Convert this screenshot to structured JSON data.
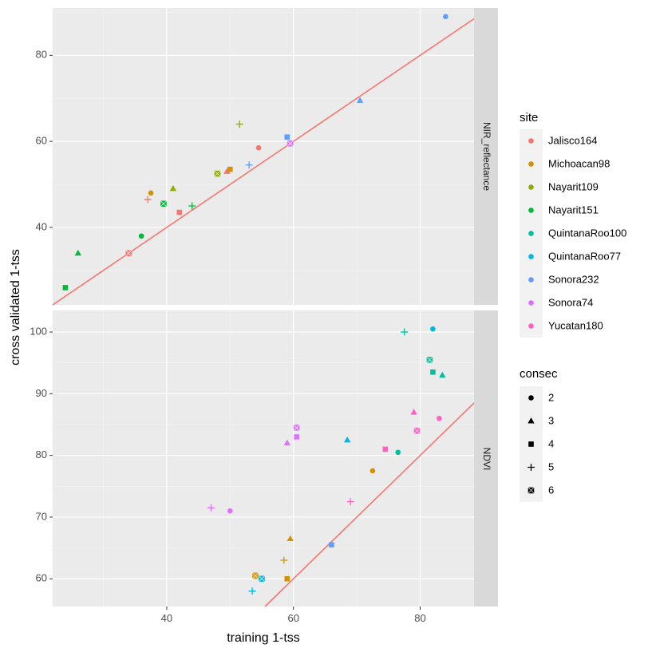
{
  "chart_data": {
    "type": "scatter",
    "xlabel": "training 1-tss",
    "ylabel": "cross validated 1-tss",
    "xlim": [
      22,
      88.5
    ],
    "x_ticks": [
      40,
      60,
      80
    ],
    "line": "y = x (1:1 reference)",
    "panels": [
      {
        "strip": "NIR_reflectance",
        "ylim": [
          22,
          91
        ],
        "y_ticks": [
          40,
          60,
          80
        ],
        "points": [
          {
            "site": "Nayarit151",
            "consec": 4,
            "x": 24,
            "y": 26
          },
          {
            "site": "Nayarit151",
            "consec": 3,
            "x": 26,
            "y": 34
          },
          {
            "site": "Jalisco164",
            "consec": 6,
            "x": 34,
            "y": 34
          },
          {
            "site": "Nayarit151",
            "consec": 2,
            "x": 36,
            "y": 38
          },
          {
            "site": "Jalisco164",
            "consec": 5,
            "x": 37,
            "y": 46.5
          },
          {
            "site": "Michoacan98",
            "consec": 2,
            "x": 37.5,
            "y": 48
          },
          {
            "site": "Nayarit151",
            "consec": 6,
            "x": 39.5,
            "y": 45.5
          },
          {
            "site": "Nayarit109",
            "consec": 3,
            "x": 41,
            "y": 49
          },
          {
            "site": "Jalisco164",
            "consec": 4,
            "x": 42,
            "y": 43.5
          },
          {
            "site": "Nayarit151",
            "consec": 5,
            "x": 44,
            "y": 45
          },
          {
            "site": "Nayarit109",
            "consec": 6,
            "x": 48,
            "y": 52.5
          },
          {
            "site": "Jalisco164",
            "consec": 3,
            "x": 49.5,
            "y": 53
          },
          {
            "site": "Michoacan98",
            "consec": 4,
            "x": 50,
            "y": 53.5
          },
          {
            "site": "Nayarit109",
            "consec": 5,
            "x": 51.5,
            "y": 64
          },
          {
            "site": "Sonora232",
            "consec": 5,
            "x": 53,
            "y": 54.5
          },
          {
            "site": "Jalisco164",
            "consec": 2,
            "x": 54.5,
            "y": 58.5
          },
          {
            "site": "Sonora232",
            "consec": 4,
            "x": 59,
            "y": 61
          },
          {
            "site": "Sonora74",
            "consec": 6,
            "x": 59.5,
            "y": 59.5
          },
          {
            "site": "Sonora232",
            "consec": 3,
            "x": 70.5,
            "y": 69.5
          },
          {
            "site": "Sonora232",
            "consec": 2,
            "x": 84,
            "y": 89
          }
        ]
      },
      {
        "strip": "NDVI",
        "ylim": [
          55.5,
          103.5
        ],
        "y_ticks": [
          60,
          70,
          80,
          90,
          100
        ],
        "points": [
          {
            "site": "Sonora74",
            "consec": 5,
            "x": 47,
            "y": 71.5
          },
          {
            "site": "Sonora74",
            "consec": 2,
            "x": 50,
            "y": 71
          },
          {
            "site": "QuintanaRoo77",
            "consec": 5,
            "x": 53.5,
            "y": 58
          },
          {
            "site": "Michoacan98",
            "consec": 6,
            "x": 54,
            "y": 60.5
          },
          {
            "site": "QuintanaRoo77",
            "consec": 6,
            "x": 55,
            "y": 60
          },
          {
            "site": "Michoacan98",
            "consec": 5,
            "x": 58.5,
            "y": 63
          },
          {
            "site": "Michoacan98",
            "consec": 4,
            "x": 59,
            "y": 60
          },
          {
            "site": "Sonora74",
            "consec": 3,
            "x": 59,
            "y": 82
          },
          {
            "site": "Michoacan98",
            "consec": 3,
            "x": 59.5,
            "y": 66.5
          },
          {
            "site": "Sonora74",
            "consec": 6,
            "x": 60.5,
            "y": 84.5
          },
          {
            "site": "Sonora74",
            "consec": 4,
            "x": 60.5,
            "y": 83
          },
          {
            "site": "Sonora232",
            "consec": 4,
            "x": 66,
            "y": 65.5
          },
          {
            "site": "QuintanaRoo77",
            "consec": 3,
            "x": 68.5,
            "y": 82.5
          },
          {
            "site": "Yucatan180",
            "consec": 5,
            "x": 69,
            "y": 72.5
          },
          {
            "site": "Michoacan98",
            "consec": 2,
            "x": 72.5,
            "y": 77.5
          },
          {
            "site": "Yucatan180",
            "consec": 4,
            "x": 74.5,
            "y": 81
          },
          {
            "site": "QuintanaRoo100",
            "consec": 2,
            "x": 76.5,
            "y": 80.5
          },
          {
            "site": "QuintanaRoo100",
            "consec": 5,
            "x": 77.5,
            "y": 100
          },
          {
            "site": "Yucatan180",
            "consec": 3,
            "x": 79,
            "y": 87
          },
          {
            "site": "Yucatan180",
            "consec": 6,
            "x": 79.5,
            "y": 84
          },
          {
            "site": "QuintanaRoo77",
            "consec": 2,
            "x": 82,
            "y": 100.5
          },
          {
            "site": "QuintanaRoo100",
            "consec": 6,
            "x": 81.5,
            "y": 95.5
          },
          {
            "site": "QuintanaRoo100",
            "consec": 4,
            "x": 82,
            "y": 93.5
          },
          {
            "site": "Yucatan180",
            "consec": 2,
            "x": 83,
            "y": 86
          },
          {
            "site": "QuintanaRoo100",
            "consec": 3,
            "x": 83.5,
            "y": 93
          }
        ]
      }
    ],
    "legends": {
      "site": {
        "title": "site",
        "entries": [
          {
            "label": "Jalisco164",
            "color": "#F8766D"
          },
          {
            "label": "Michoacan98",
            "color": "#D39200"
          },
          {
            "label": "Nayarit109",
            "color": "#93AA00"
          },
          {
            "label": "Nayarit151",
            "color": "#00BA38"
          },
          {
            "label": "QuintanaRoo100",
            "color": "#00C19F"
          },
          {
            "label": "QuintanaRoo77",
            "color": "#00B9E3"
          },
          {
            "label": "Sonora232",
            "color": "#619CFF"
          },
          {
            "label": "Sonora74",
            "color": "#DB72FB"
          },
          {
            "label": "Yucatan180",
            "color": "#FF61C3"
          }
        ]
      },
      "consec": {
        "title": "consec",
        "entries": [
          {
            "label": "2",
            "shape": "circle"
          },
          {
            "label": "3",
            "shape": "triangle"
          },
          {
            "label": "4",
            "shape": "square"
          },
          {
            "label": "5",
            "shape": "plus"
          },
          {
            "label": "6",
            "shape": "boxed-x"
          }
        ]
      }
    },
    "colors": {
      "panel_bg": "#EBEBEB",
      "grid": "#FFFFFF",
      "strip_bg": "#D9D9D9",
      "line": "#F8766D"
    }
  }
}
